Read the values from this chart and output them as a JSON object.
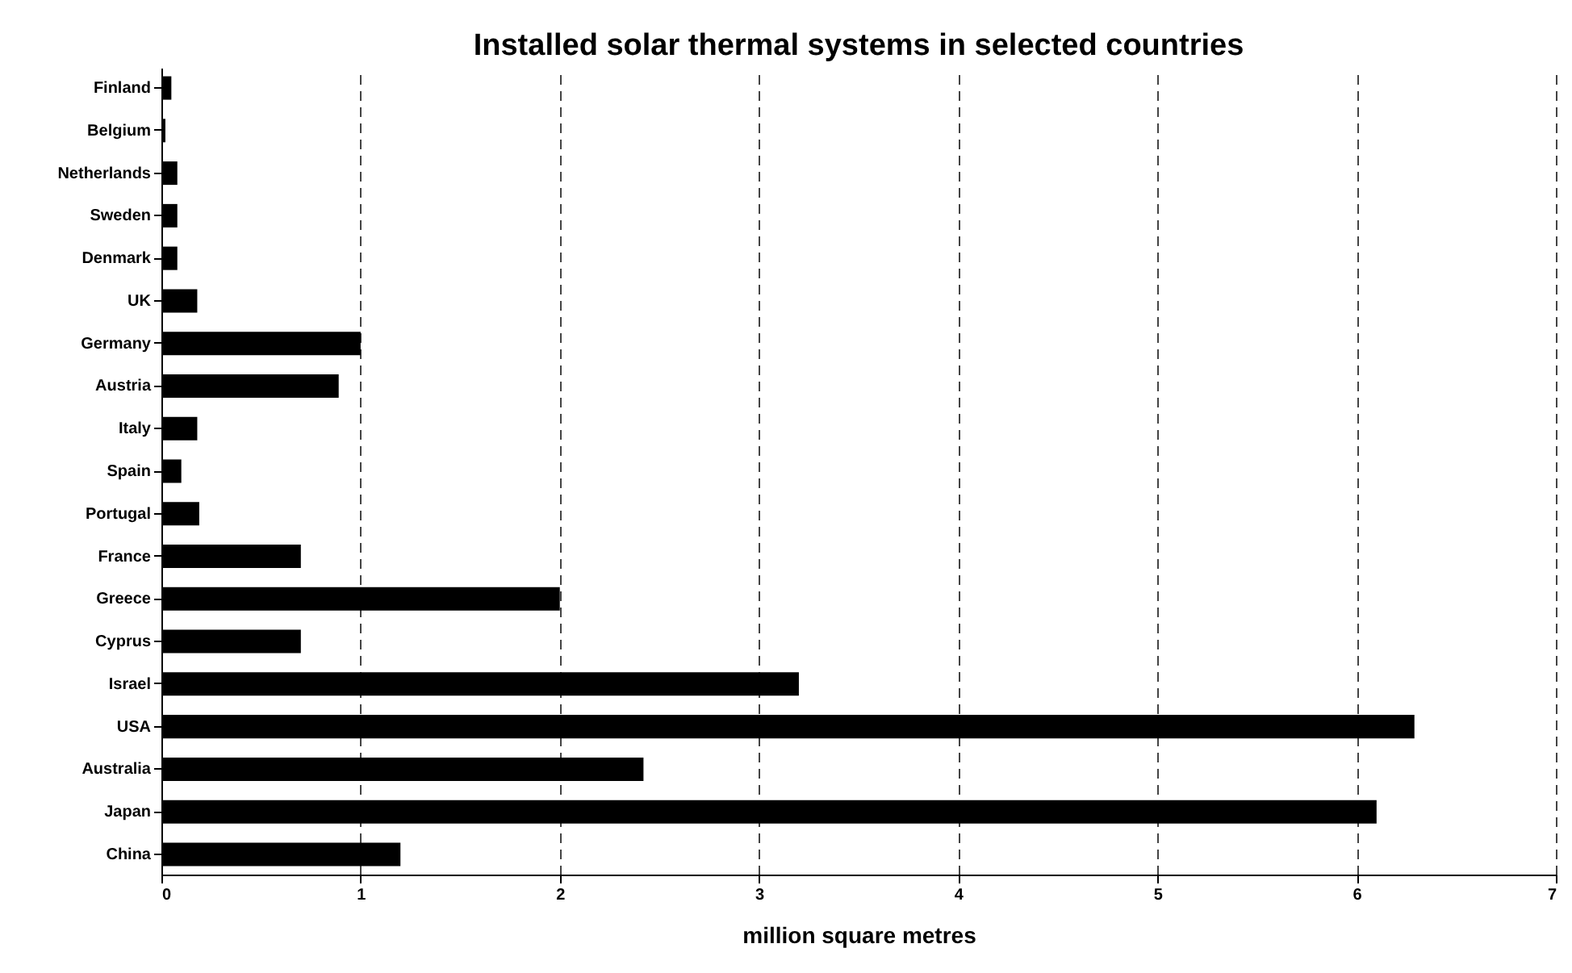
{
  "chart_data": {
    "type": "bar",
    "orientation": "horizontal",
    "title": "Installed solar thermal systems in selected countries",
    "xlabel": "million square metres",
    "categories": [
      "Finland",
      "Belgium",
      "Netherlands",
      "Sweden",
      "Denmark",
      "UK",
      "Germany",
      "Austria",
      "Italy",
      "Spain",
      "Portugal",
      "France",
      "Greece",
      "Cyprus",
      "Israel",
      "USA",
      "Australia",
      "Japan",
      "China"
    ],
    "values": [
      0.05,
      0.02,
      0.08,
      0.08,
      0.08,
      0.18,
      1.0,
      0.89,
      0.18,
      0.1,
      0.19,
      0.7,
      2.0,
      0.7,
      3.2,
      6.29,
      2.42,
      6.1,
      1.2
    ],
    "color": "#000000",
    "xlim": [
      0,
      7
    ],
    "xticks": [
      0,
      1,
      2,
      3,
      4,
      5,
      6,
      7
    ],
    "grid": "x"
  }
}
